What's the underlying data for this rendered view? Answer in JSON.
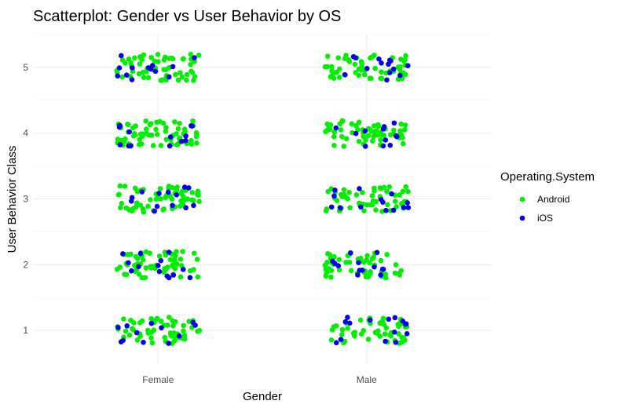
{
  "chart_data": {
    "type": "scatter",
    "title": "Scatterplot: Gender vs User Behavior by OS",
    "xlabel": "Gender",
    "ylabel": "User Behavior Class",
    "x_categories": [
      "Female",
      "Male"
    ],
    "y_ticks": [
      1,
      2,
      3,
      4,
      5
    ],
    "ylim": [
      0.5,
      5.5
    ],
    "jitter": {
      "x": 0.2,
      "y": 0.2
    },
    "grid": true,
    "legend": {
      "title": "Operating.System",
      "position": "right"
    },
    "series": [
      {
        "name": "Android",
        "color": "#00ee00",
        "counts": {
          "Female": [
            55,
            60,
            60,
            65,
            58
          ],
          "Male": [
            52,
            55,
            55,
            60,
            55
          ]
        }
      },
      {
        "name": "iOS",
        "color": "#0000ee",
        "counts": {
          "Female": [
            12,
            14,
            13,
            14,
            13
          ],
          "Male": [
            15,
            13,
            14,
            12,
            14
          ]
        }
      }
    ]
  }
}
